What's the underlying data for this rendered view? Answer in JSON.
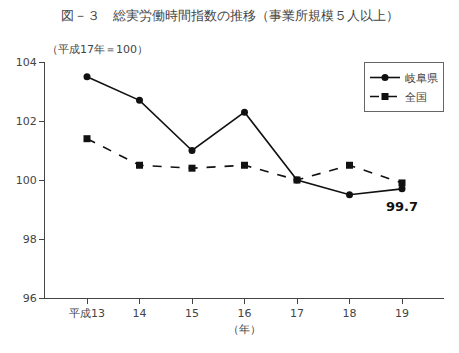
{
  "chart_data": {
    "type": "line",
    "title": "図－３　総実労働時間指数の推移（事業所規模５人以上）",
    "subtitle": "（平成17年＝100）",
    "xlabel": "（年）",
    "x": [
      13,
      14,
      15,
      16,
      17,
      18,
      19
    ],
    "series": [
      {
        "name": "岐阜県",
        "color": "#111111",
        "marker": "circle",
        "line_style": "solid",
        "values": [
          103.5,
          102.7,
          101.0,
          102.3,
          100.0,
          99.5,
          99.7
        ]
      },
      {
        "name": "全国",
        "color": "#111111",
        "marker": "square",
        "line_style": "dash",
        "values": [
          101.4,
          100.5,
          100.4,
          100.5,
          100.0,
          100.5,
          99.9
        ]
      }
    ],
    "annotations": [
      "99.7"
    ],
    "xlim": [
      12.2,
      19.8
    ],
    "xticks": [
      {
        "value": 13,
        "label": "平成13"
      },
      14,
      15,
      16,
      17,
      18,
      19
    ],
    "ylim": [
      96,
      104
    ],
    "yticks": [
      96,
      98,
      100,
      102,
      104
    ],
    "grid": false,
    "legend": "upper right"
  }
}
